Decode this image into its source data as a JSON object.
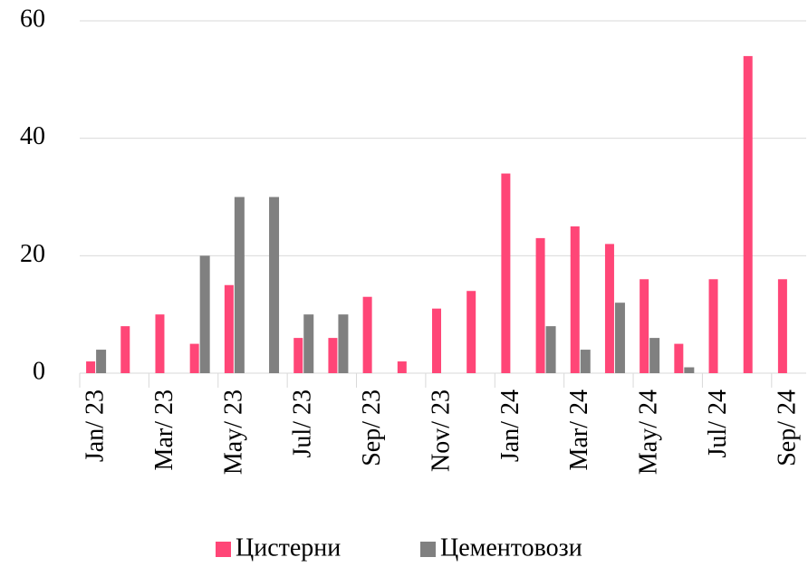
{
  "chart_data": {
    "type": "bar",
    "categories": [
      "Jan/ 23",
      null,
      "Mar/ 23",
      null,
      "May/ 23",
      null,
      "Jul/ 23",
      null,
      "Sep/ 23",
      null,
      "Nov/ 23",
      null,
      "Jan/ 24",
      null,
      "Mar/ 24",
      null,
      "May/ 24",
      null,
      "Jul/ 24",
      null,
      "Sep/ 24"
    ],
    "series": [
      {
        "name": "Цистерни",
        "color": "#ff4677",
        "values": [
          2,
          8,
          10,
          5,
          15,
          0,
          6,
          6,
          13,
          2,
          11,
          14,
          34,
          23,
          25,
          22,
          16,
          5,
          16,
          54,
          16
        ]
      },
      {
        "name": "Цементовози",
        "color": "#808080",
        "values": [
          4,
          0,
          0,
          20,
          30,
          30,
          10,
          10,
          0,
          0,
          0,
          0,
          0,
          8,
          4,
          12,
          6,
          1,
          0,
          0,
          0
        ]
      }
    ],
    "ylim": [
      0,
      60
    ],
    "yticks": [
      0,
      20,
      40,
      60
    ],
    "grid": true,
    "legend": "bottom"
  }
}
